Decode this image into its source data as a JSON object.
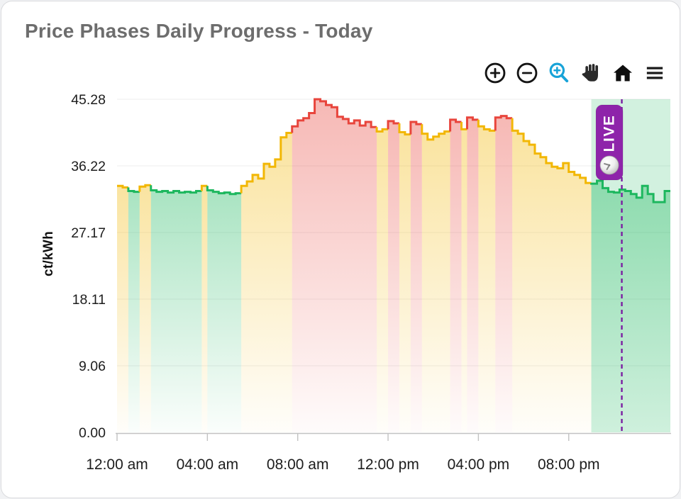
{
  "card": {
    "title": "Price Phases Daily Progress - Today"
  },
  "toolbar": {
    "buttons": [
      {
        "name": "zoom-in",
        "icon": "circle-plus-icon",
        "color": "#141414"
      },
      {
        "name": "zoom-out",
        "icon": "circle-minus-icon",
        "color": "#141414"
      },
      {
        "name": "box-zoom",
        "icon": "magnifier-plus-icon",
        "color": "#18a3d8"
      },
      {
        "name": "pan",
        "icon": "hand-icon",
        "color": "#2a2a2a"
      },
      {
        "name": "reset-view",
        "icon": "home-icon",
        "color": "#0e0e0e"
      },
      {
        "name": "menu",
        "icon": "hamburger-icon",
        "color": "#1a1a1a"
      }
    ]
  },
  "chart_data": {
    "type": "area",
    "subtype": "stepped-phase-area",
    "title": "Price Phases Daily Progress - Today",
    "xlabel": "",
    "ylabel": "ct/kWh",
    "ylim": [
      0,
      45.28
    ],
    "xlim_hours": [
      0,
      24.5
    ],
    "grid": true,
    "legend": "none",
    "y_ticks": [
      {
        "value": 45.28,
        "label": "45.28"
      },
      {
        "value": 36.22,
        "label": "36.22"
      },
      {
        "value": 27.17,
        "label": "27.17"
      },
      {
        "value": 18.11,
        "label": "18.11"
      },
      {
        "value": 9.06,
        "label": "9.06"
      },
      {
        "value": 0,
        "label": "0.00"
      }
    ],
    "x_ticks": [
      {
        "hour": 0,
        "label": "12:00 am"
      },
      {
        "hour": 4,
        "label": "04:00 am"
      },
      {
        "hour": 8,
        "label": "08:00 am"
      },
      {
        "hour": 12,
        "label": "12:00 pm"
      },
      {
        "hour": 16,
        "label": "04:00 pm"
      },
      {
        "hour": 20,
        "label": "08:00 pm"
      }
    ],
    "start_hour": 0,
    "step_hours": 0.25,
    "values": [
      33.5,
      33.3,
      32.8,
      32.7,
      33.4,
      33.6,
      32.9,
      32.7,
      32.8,
      32.6,
      32.8,
      32.6,
      32.7,
      32.6,
      32.8,
      33.5,
      32.9,
      32.7,
      32.5,
      32.6,
      32.4,
      32.5,
      33.5,
      34.1,
      35.0,
      34.5,
      36.5,
      36.1,
      37.1,
      40.1,
      40.7,
      41.6,
      42.4,
      42.7,
      43.4,
      45.28,
      45.0,
      44.5,
      44.2,
      42.9,
      42.6,
      42.0,
      42.4,
      41.7,
      42.2,
      41.5,
      40.9,
      41.2,
      42.3,
      42.0,
      40.8,
      40.5,
      42.2,
      41.9,
      40.6,
      39.8,
      40.2,
      40.6,
      40.9,
      42.5,
      42.2,
      41.2,
      42.8,
      42.5,
      41.6,
      41.2,
      41.0,
      42.8,
      43.0,
      42.7,
      41.0,
      40.6,
      39.6,
      39.1,
      37.9,
      37.4,
      36.6,
      36.1,
      35.9,
      36.6,
      35.4,
      35.0,
      34.6,
      33.9,
      33.8,
      34.2,
      33.2,
      32.7,
      32.6,
      33.0,
      32.8,
      32.4,
      31.9,
      33.5,
      32.4,
      31.3,
      31.3,
      32.8
    ],
    "phases": [
      "yygg",
      "yygg",
      "gggg",
      "gggy",
      "gggg",
      "ggyy",
      "yyyy",
      "yyyr",
      "rrrr",
      "rrrr",
      "rrrr",
      "rryy",
      "rryy",
      "rryy",
      "yyyr",
      "ryrr",
      "yyyr",
      "rryy",
      "yyyy",
      "yyyy",
      "yyyy",
      "gggg",
      "gggg",
      "gggg",
      "gg"
    ],
    "phase_colors": {
      "g": "#1db75e",
      "y": "#f2b705",
      "r": "#e8453c"
    },
    "phase_names": {
      "g": "green-cheap",
      "y": "yellow-medium",
      "r": "red-expensive"
    },
    "live": {
      "label": "LIVE",
      "now_hour": 22.35,
      "window_start_hour": 21.0,
      "window_color": "#1db75e",
      "window_opacity": 0.2,
      "line_color": "#7b1fa2",
      "badge_color": "#8e24aa",
      "badge_text_color": "#ffffff"
    }
  }
}
